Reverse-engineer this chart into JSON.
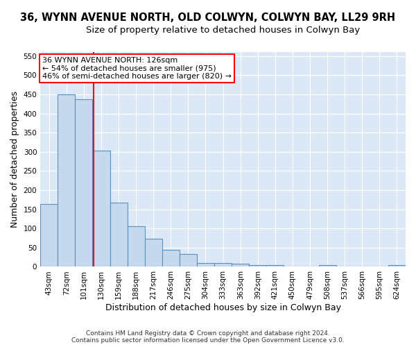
{
  "title": "36, WYNN AVENUE NORTH, OLD COLWYN, COLWYN BAY, LL29 9RH",
  "subtitle": "Size of property relative to detached houses in Colwyn Bay",
  "xlabel": "Distribution of detached houses by size in Colwyn Bay",
  "ylabel": "Number of detached properties",
  "footer_line1": "Contains HM Land Registry data © Crown copyright and database right 2024.",
  "footer_line2": "Contains public sector information licensed under the Open Government Licence v3.0.",
  "bins": [
    "43sqm",
    "72sqm",
    "101sqm",
    "130sqm",
    "159sqm",
    "188sqm",
    "217sqm",
    "246sqm",
    "275sqm",
    "304sqm",
    "333sqm",
    "363sqm",
    "392sqm",
    "421sqm",
    "450sqm",
    "479sqm",
    "508sqm",
    "537sqm",
    "566sqm",
    "595sqm",
    "624sqm"
  ],
  "values": [
    163,
    450,
    437,
    304,
    167,
    106,
    74,
    45,
    33,
    10,
    10,
    8,
    5,
    5,
    0,
    0,
    5,
    0,
    0,
    0,
    5
  ],
  "bar_color": "#c5d8ed",
  "bar_edge_color": "#5a90c0",
  "vline_x_index": 2.58,
  "vline_color": "red",
  "annotation_text": "36 WYNN AVENUE NORTH: 126sqm\n← 54% of detached houses are smaller (975)\n46% of semi-detached houses are larger (820) →",
  "annotation_box_color": "white",
  "annotation_box_edge": "red",
  "ylim": [
    0,
    560
  ],
  "yticks": [
    0,
    50,
    100,
    150,
    200,
    250,
    300,
    350,
    400,
    450,
    500,
    550
  ],
  "background_color": "#dce8f5",
  "grid_color": "white",
  "title_fontsize": 10.5,
  "subtitle_fontsize": 9.5,
  "axis_label_fontsize": 9,
  "tick_fontsize": 7.5,
  "footer_fontsize": 6.5
}
